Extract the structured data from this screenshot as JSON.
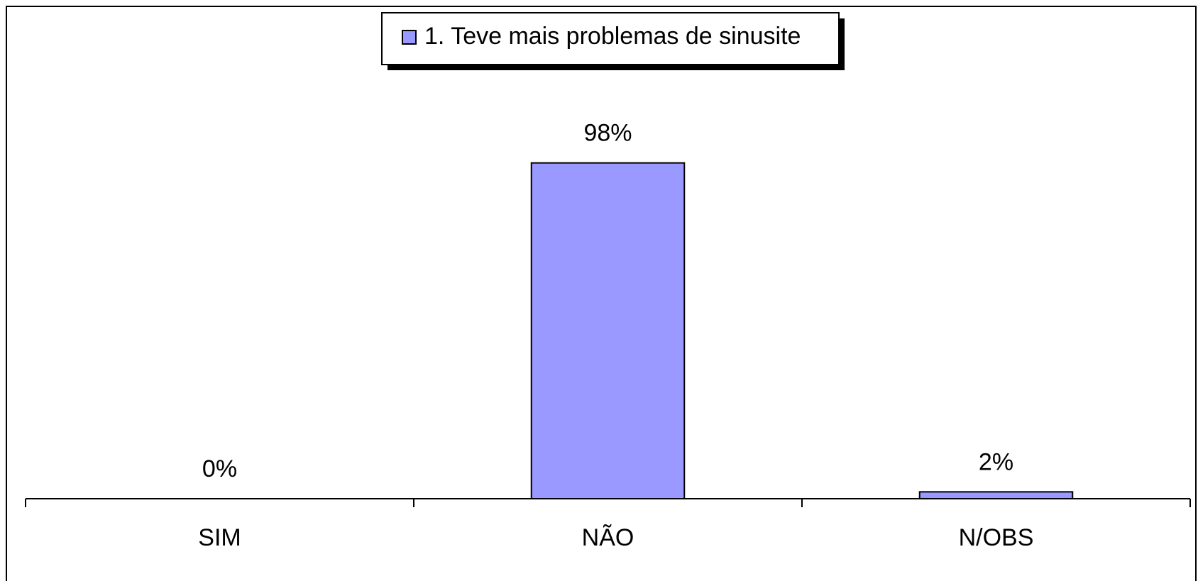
{
  "chart_data": {
    "type": "bar",
    "categories": [
      "SIM",
      "NÃO",
      "N/OBS"
    ],
    "series": [
      {
        "name": "1. Teve mais problemas de sinusite",
        "color": "#9999ff",
        "values": [
          0,
          98,
          2
        ],
        "value_labels": [
          "0%",
          "98%",
          "2%"
        ]
      }
    ],
    "ylim": [
      0,
      100
    ],
    "legend": "top"
  }
}
